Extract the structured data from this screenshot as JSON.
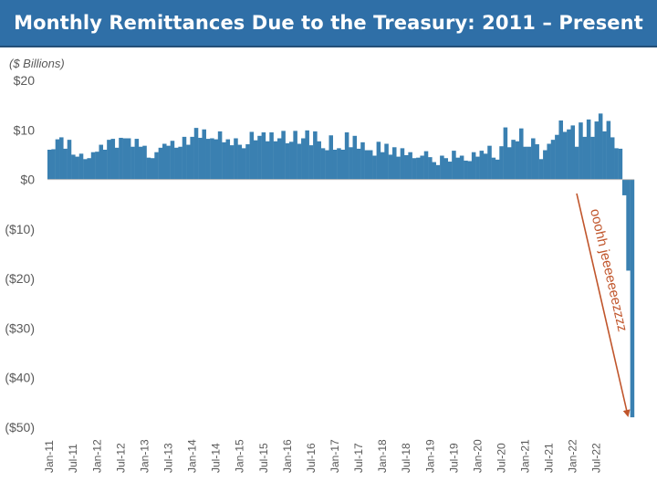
{
  "title": "Monthly Remittances Due to the Treasury: 2011 – Present",
  "units_label": "($ Billions)",
  "colors": {
    "title_bar": "#2f6fa7",
    "bar": "#3a80b1",
    "axis_text": "#595959",
    "annotation": "#c0552b"
  },
  "chart_data": {
    "type": "bar",
    "title": "Monthly Remittances Due to the Treasury: 2011 – Present",
    "ylabel": "($ Billions)",
    "xlabel": "",
    "ylim": [
      -50,
      20
    ],
    "yticks": [
      20,
      10,
      0,
      -10,
      -20,
      -30,
      -40,
      -50
    ],
    "ytick_labels": [
      "$20",
      "$10",
      "$0",
      "($10)",
      "($20)",
      "($30)",
      "($40)",
      "($50)"
    ],
    "xtick_labels": [
      "Jan-11",
      "Jul-11",
      "Jan-12",
      "Jul-12",
      "Jan-13",
      "Jul-13",
      "Jan-14",
      "Jul-14",
      "Jan-15",
      "Jul-15",
      "Jan-16",
      "Jul-16",
      "Jan-17",
      "Jul-17",
      "Jan-18",
      "Jul-18",
      "Jan-19",
      "Jul-19",
      "Jan-20",
      "Jul-20",
      "Jan-21",
      "Jul-21",
      "Jan-22",
      "Jul-22"
    ],
    "start_month": "Jan-11",
    "grid": false,
    "legend": "none",
    "values": [
      6.0,
      6.1,
      8.1,
      8.5,
      6.2,
      8.0,
      5.0,
      4.6,
      5.2,
      4.1,
      4.3,
      5.5,
      5.6,
      7.0,
      6.0,
      8.0,
      8.2,
      6.4,
      8.4,
      8.3,
      8.3,
      6.6,
      8.2,
      6.6,
      6.8,
      4.4,
      4.3,
      5.5,
      6.4,
      7.2,
      6.8,
      7.8,
      6.4,
      6.6,
      8.6,
      7.0,
      8.6,
      10.4,
      8.4,
      10.1,
      8.2,
      8.3,
      8.1,
      9.7,
      7.5,
      8.1,
      6.9,
      8.3,
      7.0,
      6.3,
      7.1,
      9.6,
      7.9,
      8.8,
      9.5,
      7.7,
      9.5,
      7.7,
      8.3,
      9.8,
      7.3,
      7.6,
      9.8,
      7.2,
      8.3,
      9.9,
      6.9,
      9.7,
      7.7,
      6.3,
      5.9,
      8.9,
      6.0,
      6.3,
      6.0,
      9.5,
      6.5,
      8.8,
      6.2,
      7.5,
      5.9,
      5.9,
      4.8,
      7.6,
      5.5,
      7.2,
      5.0,
      6.5,
      4.6,
      6.3,
      4.9,
      5.5,
      4.3,
      4.4,
      4.8,
      5.7,
      4.5,
      3.5,
      2.9,
      4.8,
      4.3,
      3.6,
      5.8,
      4.4,
      4.8,
      3.8,
      3.7,
      5.5,
      4.6,
      5.8,
      5.2,
      6.8,
      4.4,
      4.0,
      6.7,
      10.5,
      6.5,
      8.0,
      7.7,
      10.3,
      6.6,
      6.6,
      8.3,
      7.1,
      4.1,
      5.9,
      7.2,
      8.0,
      9.0,
      11.9,
      9.6,
      10.1,
      10.9,
      6.6,
      11.5,
      8.6,
      12.1,
      8.6,
      11.7,
      13.3,
      9.7,
      11.8,
      8.5,
      6.3,
      6.2,
      -3.2,
      -18.4,
      -48.0
    ]
  },
  "annotation": {
    "text": "ooohh jeeeeeeezzzz"
  }
}
